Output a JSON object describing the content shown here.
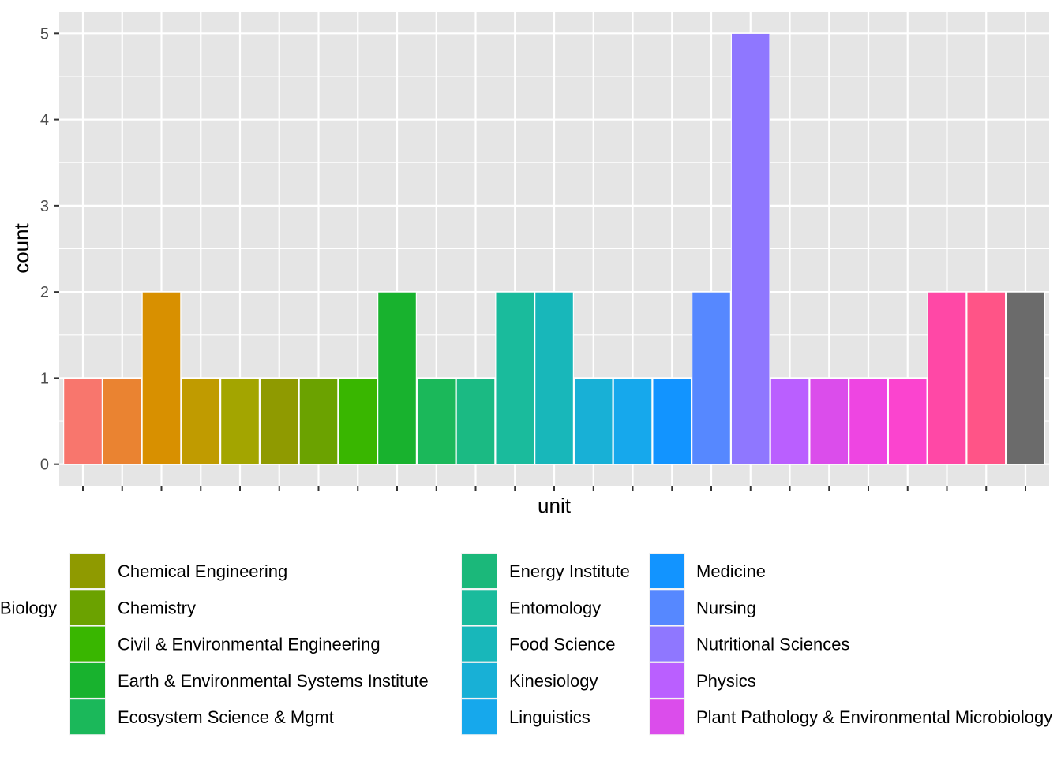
{
  "chart_data": {
    "type": "bar",
    "xlabel": "unit",
    "ylabel": "count",
    "ylim": [
      -0.25,
      5.25
    ],
    "yticks": [
      0,
      1,
      2,
      3,
      4,
      5
    ],
    "x_tick_labels_shown": false,
    "grid": true,
    "legend_position": "bottom",
    "bars": [
      {
        "value": 1,
        "color": "#F8766D"
      },
      {
        "value": 1,
        "color": "#EA8331"
      },
      {
        "value": 2,
        "color": "#D89000"
      },
      {
        "value": 1,
        "color": "#C09B00"
      },
      {
        "value": 1,
        "color": "#A3A500"
      },
      {
        "value": 1,
        "color": "#8F9A00"
      },
      {
        "value": 1,
        "color": "#6BA200"
      },
      {
        "value": 1,
        "color": "#39B600"
      },
      {
        "value": 2,
        "color": "#18B22E"
      },
      {
        "value": 1,
        "color": "#1BB85A"
      },
      {
        "value": 1,
        "color": "#1BBA83"
      },
      {
        "value": 2,
        "color": "#1ABB9C"
      },
      {
        "value": 2,
        "color": "#18B7BA"
      },
      {
        "value": 1,
        "color": "#18B0D6"
      },
      {
        "value": 1,
        "color": "#16A8EC"
      },
      {
        "value": 1,
        "color": "#1294FF"
      },
      {
        "value": 2,
        "color": "#5688FF"
      },
      {
        "value": 5,
        "color": "#8F77FF"
      },
      {
        "value": 1,
        "color": "#BA5FFF"
      },
      {
        "value": 1,
        "color": "#DB4DEB"
      },
      {
        "value": 1,
        "color": "#EE45E2"
      },
      {
        "value": 1,
        "color": "#FB44CF"
      },
      {
        "value": 2,
        "color": "#FF48A6"
      },
      {
        "value": 2,
        "color": "#FF5487"
      },
      {
        "value": 2,
        "color": "#6B6B6B"
      }
    ],
    "legend": [
      {
        "label": "Biology",
        "color": "#A3A500"
      },
      {
        "label": "Chemical Engineering",
        "color": "#8F9A00"
      },
      {
        "label": "Chemistry",
        "color": "#6BA200"
      },
      {
        "label": "Civil & Environmental Engineering",
        "color": "#39B600"
      },
      {
        "label": "Earth & Environmental Systems Institute",
        "color": "#18B22E"
      },
      {
        "label": "Ecosystem Science & Mgmt",
        "color": "#1BB85A"
      },
      {
        "label": "Energy Institute",
        "color": "#1BB87A"
      },
      {
        "label": "Entomology",
        "color": "#1ABB9C"
      },
      {
        "label": "Food Science",
        "color": "#18B7BA"
      },
      {
        "label": "Kinesiology",
        "color": "#18B0D6"
      },
      {
        "label": "Linguistics",
        "color": "#16A8EC"
      },
      {
        "label": "Medicine",
        "color": "#1294FF"
      },
      {
        "label": "Nursing",
        "color": "#5688FF"
      },
      {
        "label": "Nutritional Sciences",
        "color": "#8F77FF"
      },
      {
        "label": "Physics",
        "color": "#BA5FFF"
      },
      {
        "label": "Plant Pathology & Environmental Microbiology",
        "color": "#DB4DEB"
      }
    ]
  }
}
